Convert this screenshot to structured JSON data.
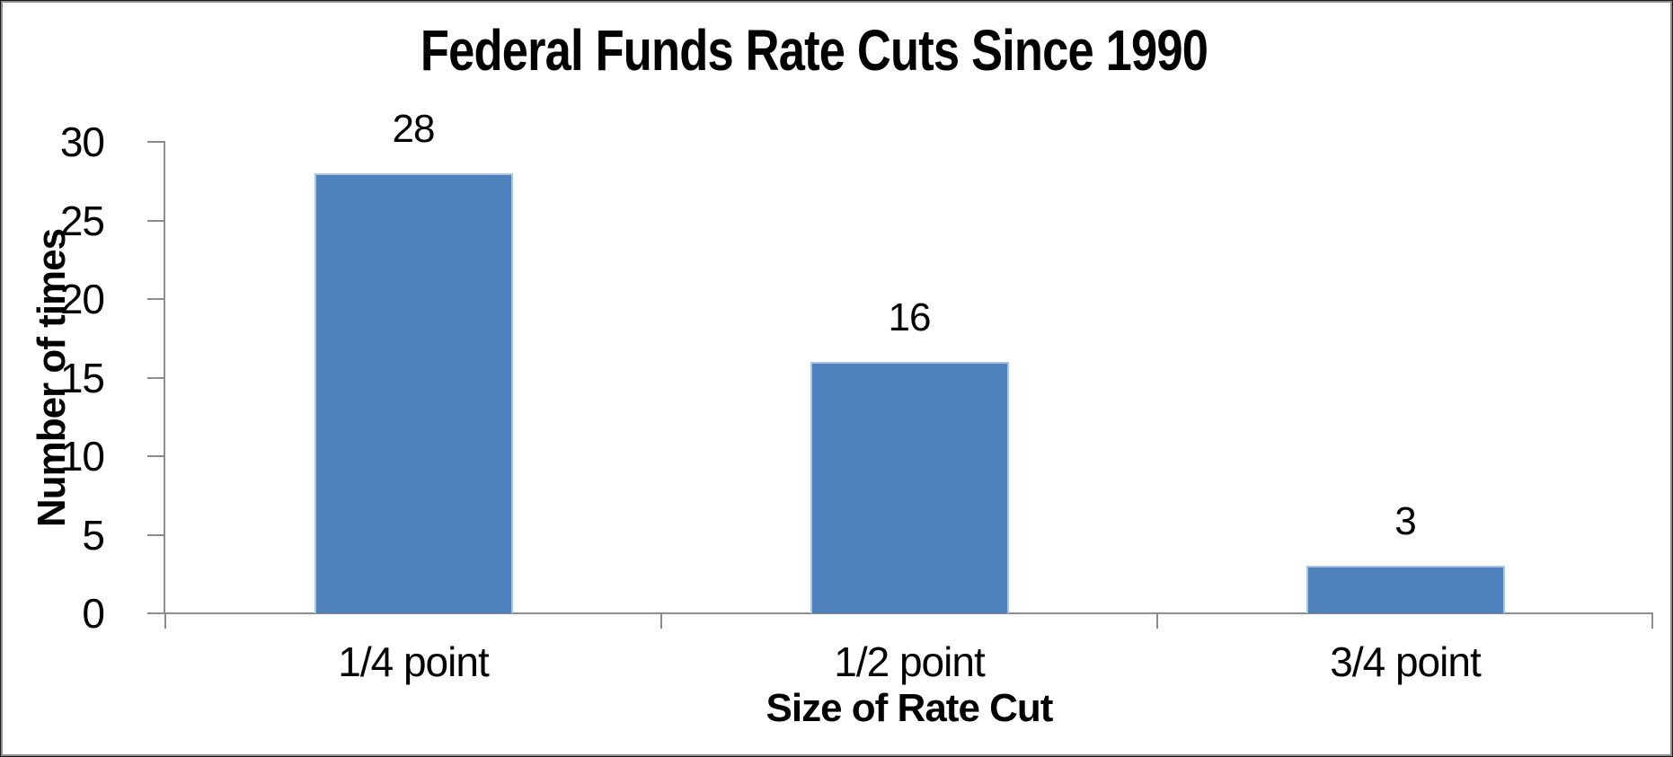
{
  "chart_data": {
    "type": "bar",
    "title": "Federal Funds Rate Cuts Since 1990",
    "categories": [
      "1/4 point",
      "1/2 point",
      "3/4 point"
    ],
    "values": [
      28,
      16,
      3
    ],
    "data_labels": [
      "28",
      "16",
      "3"
    ],
    "xlabel": "Size of Rate Cut",
    "ylabel": "Number of times",
    "ylim": [
      0,
      30
    ],
    "yticks": [
      0,
      5,
      10,
      15,
      20,
      25,
      30
    ],
    "grid": false,
    "legend": "none",
    "bar_gap_ratio": 0.4,
    "colors": {
      "bar_fill": "#4F81BD",
      "bar_border": "#A9C3E1",
      "axis": "#8C8C8C",
      "text": "#000000",
      "background": "#FFFFFF",
      "frame_border": "#8F8F8F"
    }
  }
}
